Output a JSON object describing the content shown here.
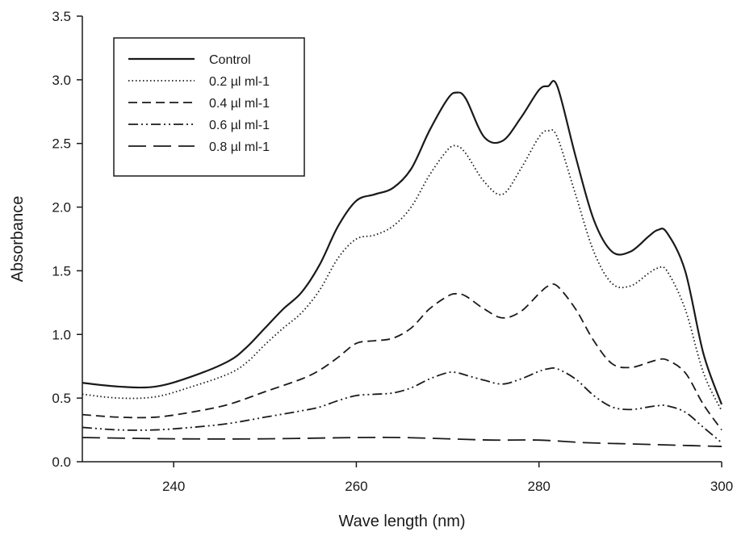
{
  "chart_data": {
    "type": "line",
    "title": "",
    "xlabel": "Wave length (nm)",
    "ylabel": "Absorbance",
    "xlim": [
      230,
      300
    ],
    "ylim": [
      0.0,
      3.5
    ],
    "xticks": [
      240,
      260,
      280,
      300
    ],
    "xtick_labels": [
      "240",
      "260",
      "280",
      "300"
    ],
    "yticks": [
      0.0,
      0.5,
      1.0,
      1.5,
      2.0,
      2.5,
      3.0,
      3.5
    ],
    "ytick_labels": [
      "0.0",
      "0.5",
      "1.0",
      "1.5",
      "2.0",
      "2.5",
      "3.0",
      "3.5"
    ],
    "grid": false,
    "legend_position": "top-left",
    "line_color": "#1a1a1a",
    "series": [
      {
        "name": "Control",
        "dash": "solid",
        "x": [
          230,
          234,
          238,
          242,
          246,
          248,
          250,
          252,
          254,
          256,
          258,
          260,
          262,
          264,
          266,
          268,
          270,
          271,
          272,
          274,
          276,
          278,
          280,
          281,
          282,
          284,
          286,
          288,
          290,
          292,
          293,
          294,
          296,
          298,
          300
        ],
        "y": [
          0.62,
          0.59,
          0.59,
          0.67,
          0.79,
          0.9,
          1.05,
          1.2,
          1.33,
          1.55,
          1.85,
          2.05,
          2.1,
          2.15,
          2.3,
          2.6,
          2.85,
          2.9,
          2.85,
          2.55,
          2.52,
          2.7,
          2.92,
          2.95,
          2.95,
          2.4,
          1.9,
          1.65,
          1.65,
          1.77,
          1.82,
          1.8,
          1.5,
          0.85,
          0.45
        ]
      },
      {
        "name": "0.2 µl ml-1",
        "dash": "dotted",
        "x": [
          230,
          234,
          238,
          242,
          246,
          248,
          250,
          252,
          254,
          256,
          258,
          260,
          262,
          264,
          266,
          268,
          270,
          271,
          272,
          274,
          276,
          278,
          280,
          281,
          282,
          284,
          286,
          288,
          290,
          292,
          293,
          294,
          296,
          298,
          300
        ],
        "y": [
          0.53,
          0.5,
          0.51,
          0.59,
          0.69,
          0.78,
          0.92,
          1.05,
          1.17,
          1.35,
          1.6,
          1.75,
          1.78,
          1.85,
          2.0,
          2.25,
          2.45,
          2.48,
          2.42,
          2.2,
          2.1,
          2.3,
          2.55,
          2.6,
          2.55,
          2.1,
          1.65,
          1.4,
          1.38,
          1.48,
          1.52,
          1.5,
          1.2,
          0.7,
          0.4
        ]
      },
      {
        "name": "0.4 µl ml-1",
        "dash": "dashed",
        "x": [
          230,
          234,
          238,
          242,
          246,
          250,
          254,
          256,
          258,
          260,
          262,
          264,
          266,
          268,
          270,
          271,
          272,
          274,
          276,
          278,
          280,
          281,
          282,
          284,
          286,
          288,
          290,
          292,
          293,
          294,
          296,
          298,
          300
        ],
        "y": [
          0.37,
          0.35,
          0.35,
          0.39,
          0.45,
          0.55,
          0.65,
          0.72,
          0.82,
          0.93,
          0.95,
          0.97,
          1.05,
          1.2,
          1.3,
          1.32,
          1.3,
          1.2,
          1.13,
          1.18,
          1.32,
          1.38,
          1.38,
          1.2,
          0.95,
          0.77,
          0.74,
          0.78,
          0.8,
          0.8,
          0.7,
          0.45,
          0.25
        ]
      },
      {
        "name": "0.6 µl ml-1",
        "dash": "dash-dot-dot",
        "x": [
          230,
          234,
          238,
          242,
          246,
          250,
          254,
          256,
          258,
          260,
          262,
          264,
          266,
          268,
          270,
          271,
          272,
          274,
          276,
          278,
          280,
          281,
          282,
          284,
          286,
          288,
          290,
          292,
          293,
          294,
          296,
          298,
          300
        ],
        "y": [
          0.27,
          0.25,
          0.25,
          0.27,
          0.3,
          0.35,
          0.4,
          0.43,
          0.48,
          0.52,
          0.53,
          0.54,
          0.58,
          0.65,
          0.7,
          0.7,
          0.68,
          0.64,
          0.61,
          0.65,
          0.71,
          0.73,
          0.73,
          0.65,
          0.52,
          0.43,
          0.41,
          0.43,
          0.44,
          0.44,
          0.39,
          0.27,
          0.15
        ]
      },
      {
        "name": "0.8 µl ml-1",
        "dash": "long-dash",
        "x": [
          230,
          240,
          250,
          260,
          265,
          270,
          275,
          280,
          285,
          290,
          295,
          300
        ],
        "y": [
          0.19,
          0.18,
          0.18,
          0.19,
          0.19,
          0.18,
          0.17,
          0.17,
          0.15,
          0.14,
          0.13,
          0.12
        ]
      }
    ]
  }
}
